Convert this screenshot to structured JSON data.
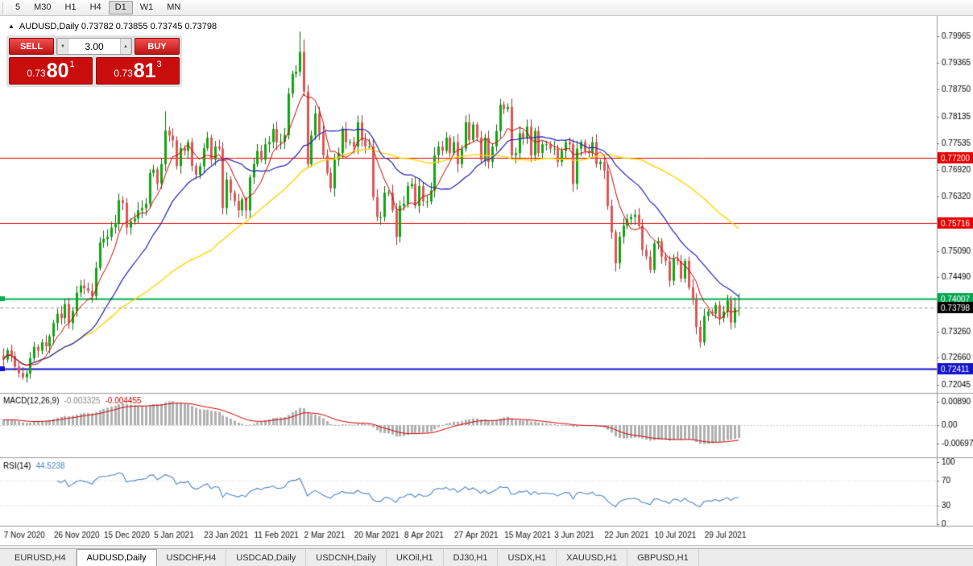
{
  "toolbar": {
    "periods": [
      "5",
      "M30",
      "H1",
      "H4",
      "D1",
      "W1",
      "MN"
    ],
    "active": "D1"
  },
  "icons": {
    "collapse": "▲",
    "spin_up": "▲",
    "spin_down": "▼"
  },
  "chart": {
    "header": "AUDUSD,Daily 0.73782 0.73855 0.73745 0.73798",
    "symbol": "AUDUSD",
    "period": "Daily",
    "ohlc": {
      "open": "0.73782",
      "high": "0.73855",
      "low": "0.73745",
      "close": "0.73798"
    }
  },
  "one_click": {
    "sell_label": "SELL",
    "buy_label": "BUY",
    "volume": "3.00",
    "sell_price": {
      "prefix": "0.73",
      "big": "80",
      "pip": "1"
    },
    "buy_price": {
      "prefix": "0.73",
      "big": "81",
      "pip": "3"
    }
  },
  "price_axis": {
    "regular": [
      "0.79965",
      "0.79365",
      "0.78750",
      "0.78135",
      "0.77535",
      "0.76920",
      "0.76320",
      "0.75090",
      "0.74490",
      "0.73260",
      "0.72660",
      "0.72045"
    ],
    "tags": [
      {
        "text": "0.77200",
        "bg": "#e60000"
      },
      {
        "text": "0.75716",
        "bg": "#e60000"
      },
      {
        "text": "0.74007",
        "bg": "#00a650"
      },
      {
        "text": "0.73798",
        "bg": "#000000"
      },
      {
        "text": "0.72411",
        "bg": "#1414cc"
      }
    ]
  },
  "indicators": {
    "macd": {
      "name": "MACD(12,26,9)",
      "main": "-0.003325",
      "signal": "-0.004455",
      "axis": [
        {
          "text": "0.00890",
          "value": 0.0089
        },
        {
          "text": "0.00",
          "value": 0
        },
        {
          "text": "-0.00697",
          "value": -0.00697
        }
      ]
    },
    "rsi": {
      "name": "RSI(14)",
      "value": "44.5238",
      "axis": [
        {
          "text": "100",
          "value": 100
        },
        {
          "text": "70",
          "value": 70
        },
        {
          "text": "30",
          "value": 30
        },
        {
          "text": "0",
          "value": 0
        }
      ]
    }
  },
  "date_axis": [
    "7 Nov 2020",
    "26 Nov 2020",
    "15 Dec 2020",
    "5 Jan 2021",
    "23 Jan 2021",
    "11 Feb 2021",
    "2 Mar 2021",
    "20 Mar 2021",
    "8 Apr 2021",
    "27 Apr 2021",
    "15 May 2021",
    "3 Jun 2021",
    "22 Jun 2021",
    "10 Jul 2021",
    "29 Jul 2021"
  ],
  "tabs": {
    "items": [
      "EURUSD,H4",
      "AUDUSD,Daily",
      "USDCHF,H4",
      "USDCAD,Daily",
      "USDCNH,Daily",
      "UKOil,H1",
      "DJ30,H1",
      "USDX,H1",
      "XAUUSD,H1",
      "GBPUSD,H1"
    ],
    "active": "AUDUSD,Daily"
  },
  "chart_data": {
    "type": "candlestick",
    "title": "AUDUSD,Daily",
    "current_price": 0.73798,
    "first_open": 0.727,
    "closes": [
      0.7262,
      0.7283,
      0.727,
      0.7246,
      0.7231,
      0.7222,
      0.723,
      0.7265,
      0.7291,
      0.7282,
      0.7301,
      0.7292,
      0.7315,
      0.7345,
      0.7366,
      0.7356,
      0.7388,
      0.7345,
      0.7372,
      0.7414,
      0.743,
      0.7424,
      0.7418,
      0.7406,
      0.747,
      0.7528,
      0.7536,
      0.7541,
      0.7562,
      0.7572,
      0.7624,
      0.7618,
      0.7562,
      0.7576,
      0.7582,
      0.7601,
      0.7606,
      0.7616,
      0.7686,
      0.7694,
      0.7662,
      0.7706,
      0.7782,
      0.7771,
      0.776,
      0.7702,
      0.7742,
      0.7736,
      0.7756,
      0.7702,
      0.7682,
      0.7701,
      0.7742,
      0.7766,
      0.7716,
      0.7746,
      0.7741,
      0.7606,
      0.7671,
      0.7641,
      0.7622,
      0.7601,
      0.7626,
      0.7601,
      0.7676,
      0.7706,
      0.7736,
      0.7716,
      0.7751,
      0.7756,
      0.7786,
      0.7756,
      0.7757,
      0.7772,
      0.7866,
      0.7911,
      0.7916,
      0.7961,
      0.7871,
      0.7706,
      0.7771,
      0.7821,
      0.7776,
      0.7726,
      0.7686,
      0.7651,
      0.7716,
      0.7731,
      0.7786,
      0.7756,
      0.7756,
      0.7746,
      0.7801,
      0.7761,
      0.7746,
      0.7746,
      0.7631,
      0.7586,
      0.7586,
      0.7641,
      0.7641,
      0.7601,
      0.7541,
      0.7611,
      0.7616,
      0.7656,
      0.7661,
      0.7611,
      0.7656,
      0.7621,
      0.7621,
      0.7646,
      0.7726,
      0.7746,
      0.7736,
      0.7766,
      0.7731,
      0.7756,
      0.7706,
      0.7741,
      0.7801,
      0.7761,
      0.7796,
      0.7766,
      0.7716,
      0.7766,
      0.7711,
      0.7746,
      0.7781,
      0.7841,
      0.7831,
      0.7836,
      0.7726,
      0.7731,
      0.7776,
      0.7766,
      0.7791,
      0.7726,
      0.7781,
      0.7731,
      0.7751,
      0.7751,
      0.7741,
      0.7741,
      0.7711,
      0.7736,
      0.7756,
      0.7751,
      0.7661,
      0.7741,
      0.7756,
      0.7736,
      0.7731,
      0.7756,
      0.7706,
      0.7711,
      0.7691,
      0.7611,
      0.7551,
      0.7481,
      0.7541,
      0.7566,
      0.7581,
      0.7586,
      0.7591,
      0.7566,
      0.7511,
      0.7496,
      0.7466,
      0.7526,
      0.7531,
      0.7496,
      0.7486,
      0.7441,
      0.7491,
      0.7486,
      0.7446,
      0.7486,
      0.7426,
      0.7401,
      0.7336,
      0.7301,
      0.7361,
      0.7371,
      0.7366,
      0.7386,
      0.7356,
      0.7371,
      0.7396,
      0.7346,
      0.7378,
      0.73798
    ],
    "overrides": [
      {
        "i": 42,
        "h": 0.7826
      },
      {
        "i": 77,
        "h": 0.8007
      },
      {
        "i": 78,
        "h": 0.7989
      },
      {
        "i": 159,
        "l": 0.7462
      },
      {
        "i": 181,
        "l": 0.7289
      },
      {
        "i": 188,
        "h": 0.7409
      },
      {
        "i": 190,
        "h": 0.7403
      },
      {
        "i": 191,
        "h": 0.7412
      }
    ],
    "levels": [
      {
        "price": 0.772,
        "color": "#e60000",
        "width": 1,
        "handle": false
      },
      {
        "price": 0.75716,
        "color": "#e60000",
        "width": 1,
        "handle": false
      },
      {
        "price": 0.74007,
        "color": "#00b050",
        "width": 2,
        "handle": true
      },
      {
        "price": 0.72411,
        "color": "#1414cc",
        "width": 2,
        "handle": true
      }
    ],
    "ma": {
      "fast": 7,
      "fast_color": "#d40000",
      "medium": 21,
      "medium_color": "#2222bb",
      "slow": 55,
      "slow_color": "#ffd400"
    },
    "colors": {
      "up": "#0fa80f",
      "up_dark": "#0a6e0a",
      "down": "#e05555",
      "down_dark": "#a83232"
    },
    "rsi_color": "#4a86c8",
    "ylim": [
      0.71881,
      0.80047
    ],
    "macd_values": {
      "main": -0.003325,
      "signal": -0.004455
    },
    "rsi_value": 44.5238
  }
}
